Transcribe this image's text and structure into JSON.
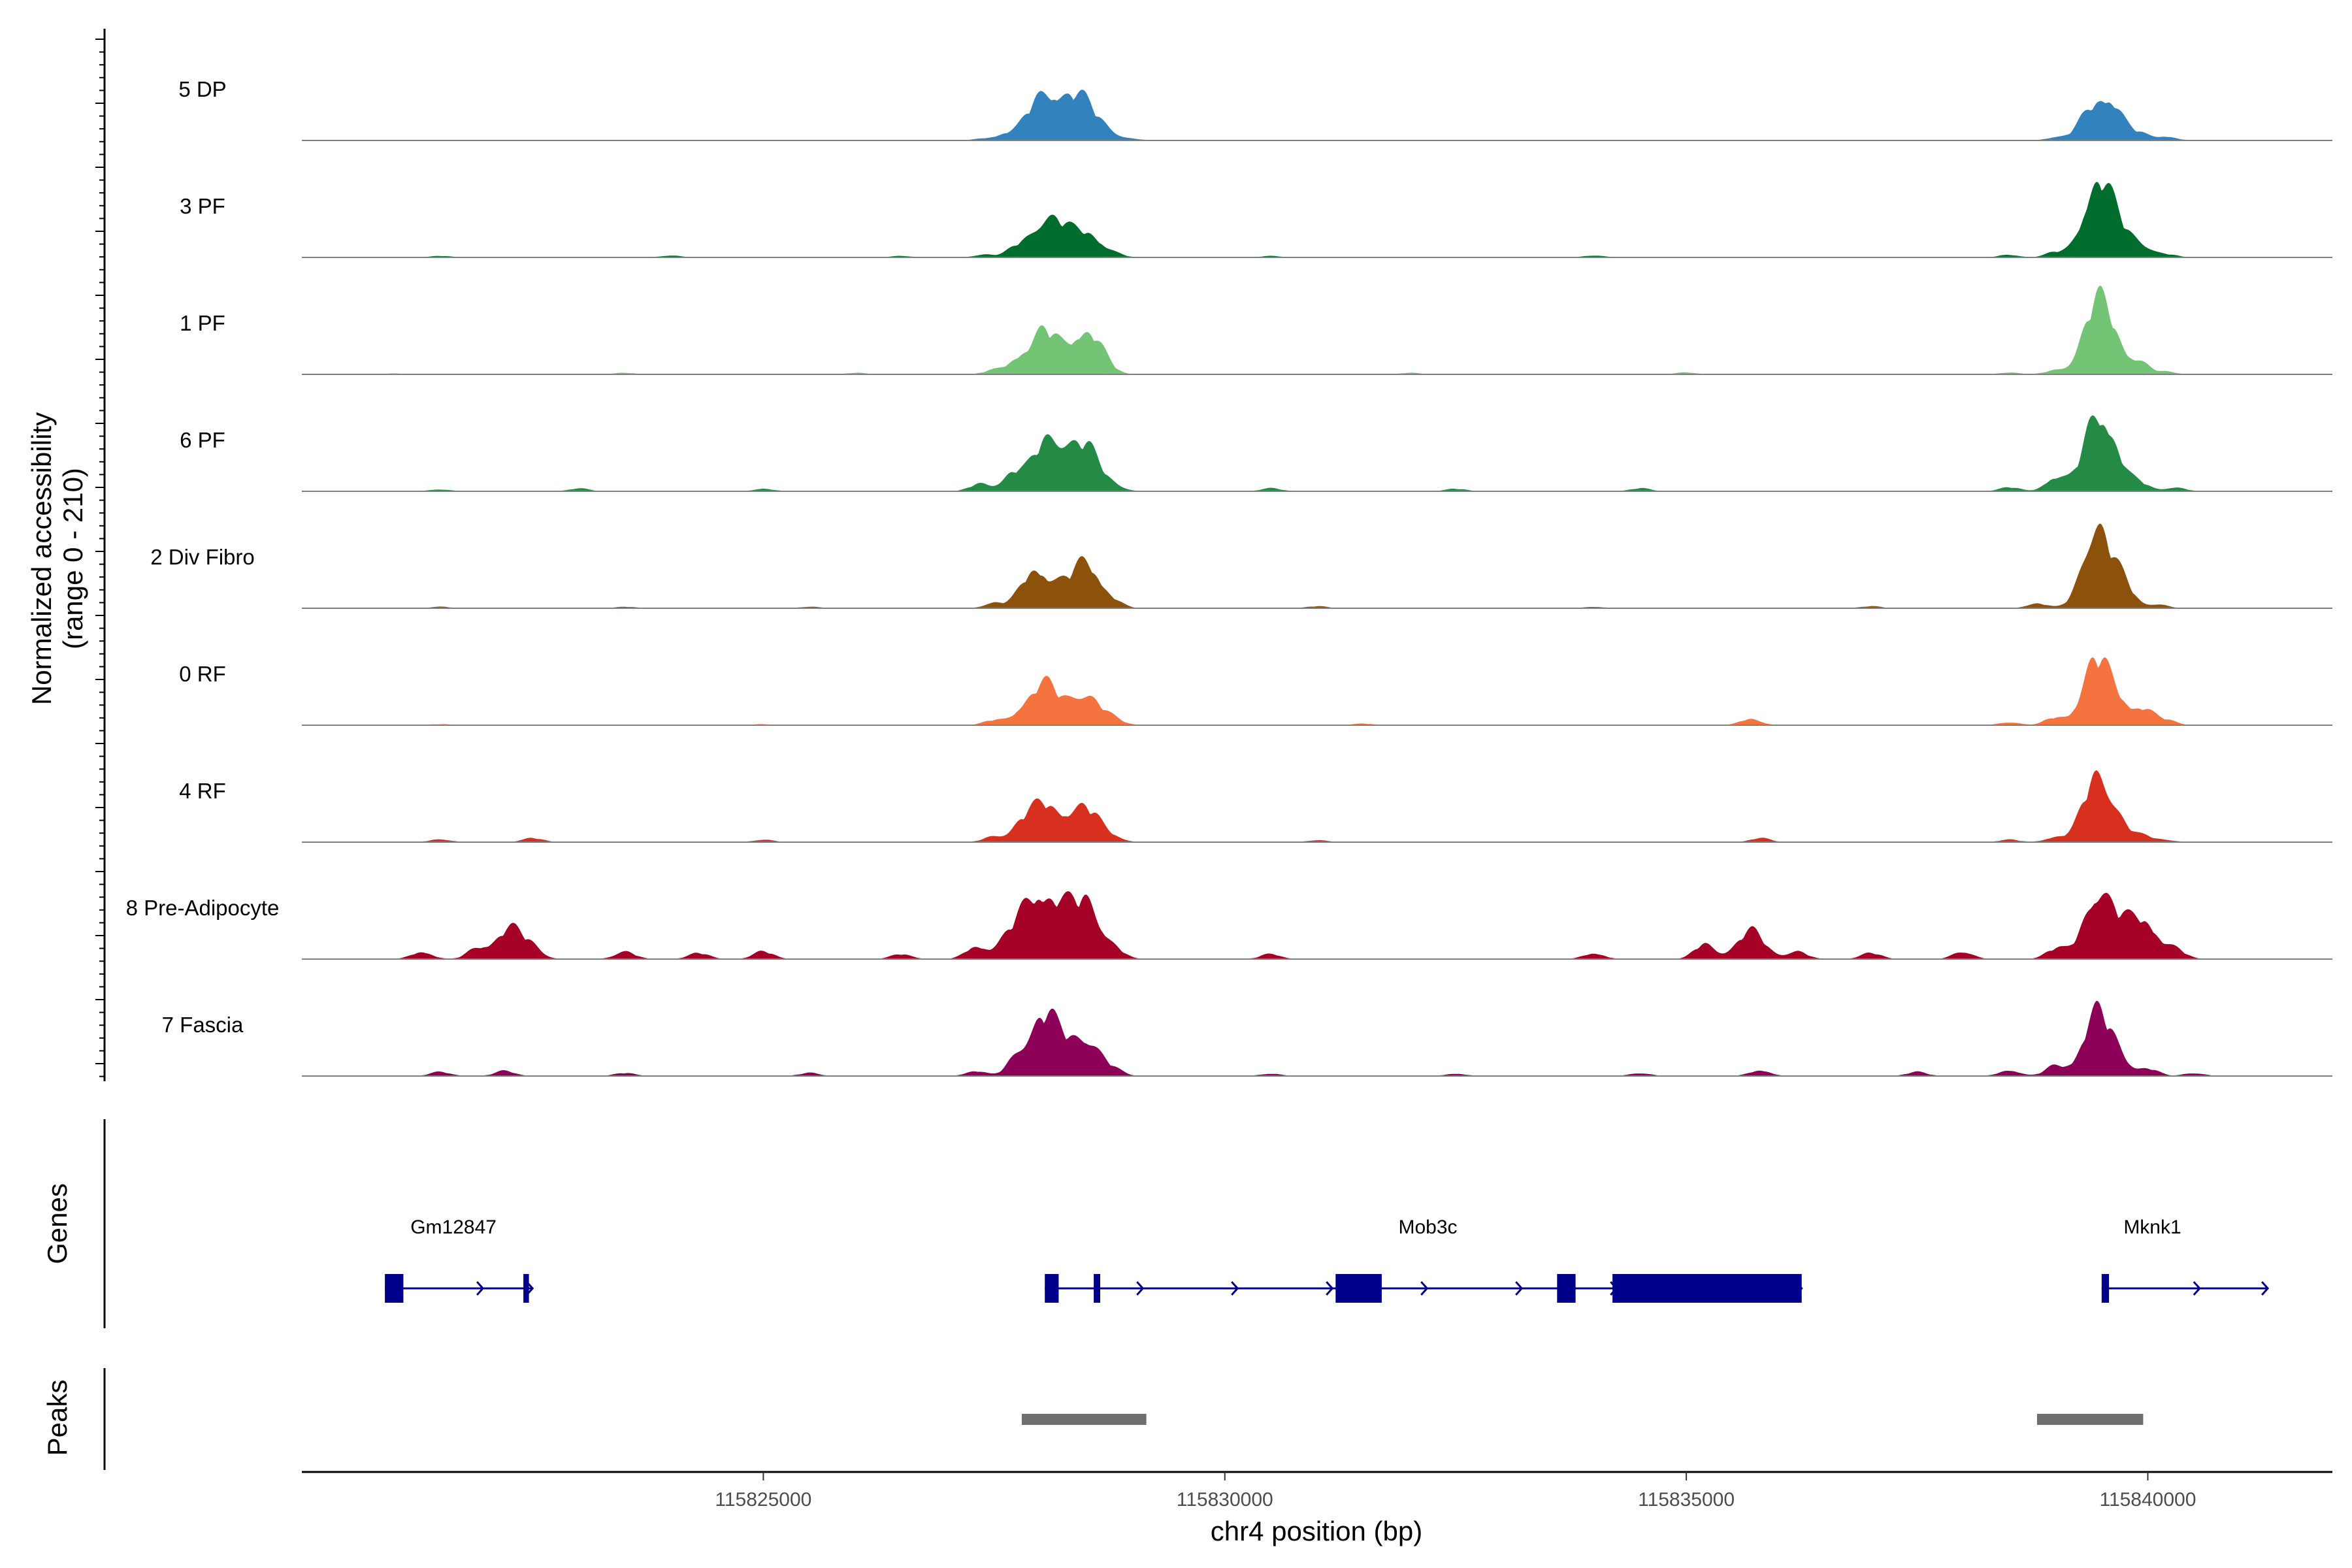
{
  "chart_data": {
    "type": "area",
    "title": "",
    "xlabel": "chr4 position (bp)",
    "ylabel": "Normalized accessibility\n(range 0 - 210)",
    "ylabel_lines": [
      "Normalized accessibility",
      "(range 0 - 210)"
    ],
    "ylim": [
      0,
      210
    ],
    "xlim": [
      115820000,
      115842000
    ],
    "x_ticks": [
      115825000,
      115830000,
      115835000,
      115840000
    ],
    "x_tick_labels": [
      "115825000",
      "115830000",
      "115835000",
      "115840000"
    ],
    "genes_track_label": "Genes",
    "peaks_track_label": "Peaks",
    "series": [
      {
        "name": "5 DP",
        "color": "#3182BD",
        "peaks": [
          [
            115827400,
            4
          ],
          [
            115827650,
            14
          ],
          [
            115827900,
            28
          ],
          [
            115828050,
            55
          ],
          [
            115828200,
            42
          ],
          [
            115828350,
            25
          ],
          [
            115828500,
            62
          ],
          [
            115828750,
            10
          ],
          [
            115829000,
            3
          ],
          [
            115839000,
            6
          ],
          [
            115839300,
            20
          ],
          [
            115839500,
            70
          ],
          [
            115839650,
            30
          ],
          [
            115839900,
            14
          ],
          [
            115840200,
            8
          ]
        ]
      },
      {
        "name": "3 PF",
        "color": "#006D2C",
        "peaks": [
          [
            115821500,
            3
          ],
          [
            115824000,
            4
          ],
          [
            115826500,
            3
          ],
          [
            115827400,
            6
          ],
          [
            115827750,
            18
          ],
          [
            115828050,
            70
          ],
          [
            115828250,
            28
          ],
          [
            115828500,
            50
          ],
          [
            115828800,
            6
          ],
          [
            115830500,
            3
          ],
          [
            115834000,
            4
          ],
          [
            115838500,
            5
          ],
          [
            115839000,
            10
          ],
          [
            115839450,
            145
          ],
          [
            115839700,
            45
          ],
          [
            115839950,
            16
          ],
          [
            115840200,
            6
          ]
        ]
      },
      {
        "name": "1 PF",
        "color": "#74C476",
        "peaks": [
          [
            115821000,
            2
          ],
          [
            115823500,
            3
          ],
          [
            115826000,
            3
          ],
          [
            115827500,
            8
          ],
          [
            115827750,
            25
          ],
          [
            115828050,
            85
          ],
          [
            115828300,
            10
          ],
          [
            115828500,
            84
          ],
          [
            115828700,
            10
          ],
          [
            115832000,
            3
          ],
          [
            115835000,
            4
          ],
          [
            115838500,
            4
          ],
          [
            115839000,
            8
          ],
          [
            115839450,
            140
          ],
          [
            115839650,
            35
          ],
          [
            115839900,
            25
          ],
          [
            115840200,
            5
          ]
        ]
      },
      {
        "name": "6 PF",
        "color": "#238B45",
        "peaks": [
          [
            115821500,
            4
          ],
          [
            115823000,
            6
          ],
          [
            115825000,
            5
          ],
          [
            115827350,
            15
          ],
          [
            115827700,
            35
          ],
          [
            115828050,
            85
          ],
          [
            115828250,
            45
          ],
          [
            115828500,
            80
          ],
          [
            115828800,
            10
          ],
          [
            115830500,
            6
          ],
          [
            115832500,
            5
          ],
          [
            115834500,
            6
          ],
          [
            115838500,
            8
          ],
          [
            115839000,
            28
          ],
          [
            115839450,
            145
          ],
          [
            115839650,
            40
          ],
          [
            115839900,
            18
          ],
          [
            115840300,
            8
          ]
        ]
      },
      {
        "name": "2 Div Fibro",
        "color": "#8C510A",
        "peaks": [
          [
            115821500,
            3
          ],
          [
            115823500,
            3
          ],
          [
            115825500,
            3
          ],
          [
            115827500,
            10
          ],
          [
            115827950,
            80
          ],
          [
            115828250,
            25
          ],
          [
            115828500,
            90
          ],
          [
            115828800,
            10
          ],
          [
            115831000,
            4
          ],
          [
            115834000,
            3
          ],
          [
            115837000,
            4
          ],
          [
            115838800,
            10
          ],
          [
            115839450,
            165
          ],
          [
            115839750,
            40
          ],
          [
            115840100,
            8
          ]
        ]
      },
      {
        "name": "0 RF",
        "color": "#F4733F",
        "peaks": [
          [
            115821500,
            2
          ],
          [
            115825000,
            2
          ],
          [
            115827500,
            10
          ],
          [
            115827800,
            22
          ],
          [
            115828050,
            80
          ],
          [
            115828300,
            10
          ],
          [
            115828500,
            60
          ],
          [
            115828800,
            10
          ],
          [
            115831500,
            3
          ],
          [
            115835700,
            13
          ],
          [
            115838500,
            6
          ],
          [
            115839000,
            15
          ],
          [
            115839450,
            130
          ],
          [
            115839700,
            30
          ],
          [
            115839950,
            32
          ],
          [
            115840200,
            10
          ]
        ]
      },
      {
        "name": "4 RF",
        "color": "#D7301F",
        "peaks": [
          [
            115821500,
            6
          ],
          [
            115822500,
            8
          ],
          [
            115825000,
            5
          ],
          [
            115827500,
            12
          ],
          [
            115827800,
            30
          ],
          [
            115828050,
            75
          ],
          [
            115828300,
            15
          ],
          [
            115828500,
            65
          ],
          [
            115828800,
            8
          ],
          [
            115831000,
            4
          ],
          [
            115835800,
            8
          ],
          [
            115838500,
            5
          ],
          [
            115839000,
            10
          ],
          [
            115839450,
            130
          ],
          [
            115839700,
            25
          ],
          [
            115839950,
            12
          ],
          [
            115840200,
            4
          ]
        ]
      },
      {
        "name": "8 Pre-Adipocyte",
        "color": "#A50026",
        "peaks": [
          [
            115821300,
            15
          ],
          [
            115821900,
            20
          ],
          [
            115822250,
            60
          ],
          [
            115822500,
            18
          ],
          [
            115823500,
            15
          ],
          [
            115824300,
            12
          ],
          [
            115825000,
            15
          ],
          [
            115826500,
            10
          ],
          [
            115827300,
            25
          ],
          [
            115827700,
            45
          ],
          [
            115827950,
            100
          ],
          [
            115828200,
            80
          ],
          [
            115828500,
            105
          ],
          [
            115828800,
            18
          ],
          [
            115830500,
            10
          ],
          [
            115834000,
            12
          ],
          [
            115835200,
            30
          ],
          [
            115835700,
            55
          ],
          [
            115836200,
            15
          ],
          [
            115837000,
            12
          ],
          [
            115838000,
            15
          ],
          [
            115839000,
            20
          ],
          [
            115839450,
            130
          ],
          [
            115839700,
            40
          ],
          [
            115839950,
            80
          ],
          [
            115840300,
            18
          ]
        ]
      },
      {
        "name": "7 Fascia",
        "color": "#8C0057",
        "peaks": [
          [
            115821500,
            8
          ],
          [
            115822200,
            10
          ],
          [
            115823500,
            6
          ],
          [
            115825500,
            6
          ],
          [
            115827300,
            10
          ],
          [
            115827750,
            35
          ],
          [
            115828050,
            120
          ],
          [
            115828300,
            25
          ],
          [
            115828500,
            70
          ],
          [
            115828800,
            10
          ],
          [
            115830500,
            5
          ],
          [
            115832500,
            5
          ],
          [
            115834500,
            6
          ],
          [
            115835800,
            12
          ],
          [
            115837500,
            8
          ],
          [
            115838500,
            12
          ],
          [
            115839000,
            20
          ],
          [
            115839450,
            125
          ],
          [
            115839700,
            25
          ],
          [
            115840000,
            15
          ],
          [
            115840500,
            6
          ]
        ]
      }
    ],
    "genes": [
      {
        "name": "Gm12847",
        "strand": "+",
        "start": 115820900,
        "end": 115822500,
        "exons": [
          [
            115820900,
            115821100
          ],
          [
            115822400,
            115822460
          ]
        ]
      },
      {
        "name": "Mob3c",
        "strand": "+",
        "start": 115828050,
        "end": 115836250,
        "exons": [
          [
            115828050,
            115828200
          ],
          [
            115828580,
            115828650
          ],
          [
            115831200,
            115831700
          ],
          [
            115833600,
            115833800
          ],
          [
            115834200,
            115836250
          ]
        ]
      },
      {
        "name": "Mknk1",
        "strand": "+",
        "start": 115839500,
        "end": 115841300,
        "exons": [
          [
            115839500,
            115839580
          ]
        ]
      }
    ],
    "peak_regions": [
      [
        115827800,
        115829150
      ],
      [
        115838800,
        115839950
      ]
    ]
  }
}
